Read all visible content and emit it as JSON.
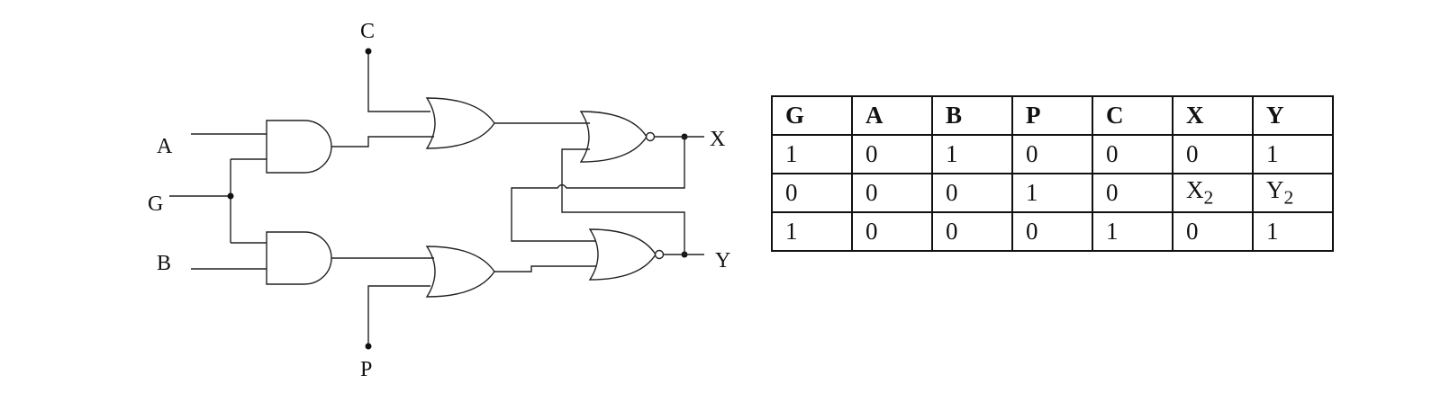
{
  "diagram": {
    "inputs": {
      "A": "A",
      "G": "G",
      "B": "B",
      "C": "C",
      "P": "P"
    },
    "outputs": {
      "X": "X",
      "Y": "Y"
    }
  },
  "table": {
    "headers": [
      "G",
      "A",
      "B",
      "P",
      "C",
      "X",
      "Y"
    ],
    "rows": [
      [
        "1",
        "0",
        "1",
        "0",
        "0",
        "0",
        "1"
      ],
      [
        "0",
        "0",
        "0",
        "1",
        "0",
        "X2",
        "Y2"
      ],
      [
        "1",
        "0",
        "0",
        "0",
        "1",
        "0",
        "1"
      ]
    ]
  }
}
